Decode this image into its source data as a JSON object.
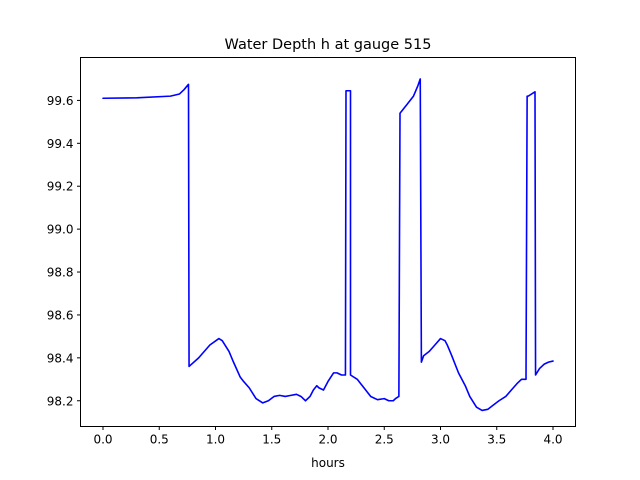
{
  "chart_data": {
    "type": "line",
    "title": "Water Depth h at gauge 515",
    "xlabel": "hours",
    "ylabel": "",
    "xlim": [
      -0.2,
      4.2
    ],
    "ylim": [
      98.08,
      99.8
    ],
    "xticks": [
      0.0,
      0.5,
      1.0,
      1.5,
      2.0,
      2.5,
      3.0,
      3.5,
      4.0
    ],
    "xtick_labels": [
      "0.0",
      "0.5",
      "1.0",
      "1.5",
      "2.0",
      "2.5",
      "3.0",
      "3.5",
      "4.0"
    ],
    "yticks": [
      98.2,
      98.4,
      98.6,
      98.8,
      99.0,
      99.2,
      99.4,
      99.6
    ],
    "ytick_labels": [
      "98.2",
      "98.4",
      "98.6",
      "98.8",
      "99.0",
      "99.2",
      "99.4",
      "99.6"
    ],
    "grid": false,
    "legend": "none",
    "series": [
      {
        "color": "#0000ff",
        "x": [
          0.0,
          0.3,
          0.6,
          0.68,
          0.72,
          0.76,
          0.765,
          0.85,
          0.95,
          1.03,
          1.06,
          1.12,
          1.16,
          1.22,
          1.25,
          1.3,
          1.36,
          1.42,
          1.47,
          1.52,
          1.57,
          1.62,
          1.67,
          1.72,
          1.76,
          1.8,
          1.84,
          1.87,
          1.9,
          1.92,
          1.96,
          2.0,
          2.05,
          2.08,
          2.12,
          2.155,
          2.16,
          2.2,
          2.2,
          2.26,
          2.32,
          2.38,
          2.44,
          2.5,
          2.54,
          2.58,
          2.6,
          2.63,
          2.64,
          2.64,
          2.7,
          2.76,
          2.8,
          2.82,
          2.83,
          2.85,
          2.9,
          2.95,
          3.0,
          3.04,
          3.06,
          3.1,
          3.16,
          3.22,
          3.26,
          3.32,
          3.37,
          3.42,
          3.47,
          3.52,
          3.58,
          3.63,
          3.68,
          3.72,
          3.76,
          3.77,
          3.78,
          3.84,
          3.845,
          3.88,
          3.92,
          3.96,
          4.0
        ],
        "y": [
          99.61,
          99.612,
          99.62,
          99.63,
          99.65,
          99.675,
          98.36,
          98.4,
          98.46,
          98.49,
          98.48,
          98.43,
          98.38,
          98.31,
          98.29,
          98.26,
          98.21,
          98.19,
          98.2,
          98.22,
          98.225,
          98.22,
          98.225,
          98.23,
          98.22,
          98.2,
          98.22,
          98.25,
          98.27,
          98.26,
          98.25,
          98.29,
          98.33,
          98.33,
          98.32,
          98.32,
          99.645,
          99.645,
          98.32,
          98.3,
          98.26,
          98.22,
          98.205,
          98.21,
          98.2,
          98.2,
          98.21,
          98.22,
          99.54,
          99.54,
          99.58,
          99.62,
          99.67,
          99.7,
          98.38,
          98.41,
          98.43,
          98.46,
          98.49,
          98.48,
          98.46,
          98.41,
          98.33,
          98.27,
          98.22,
          98.17,
          98.155,
          98.16,
          98.18,
          98.2,
          98.22,
          98.25,
          98.28,
          98.3,
          98.3,
          99.62,
          99.62,
          99.64,
          98.32,
          98.35,
          98.37,
          98.38,
          98.385
        ]
      }
    ]
  }
}
